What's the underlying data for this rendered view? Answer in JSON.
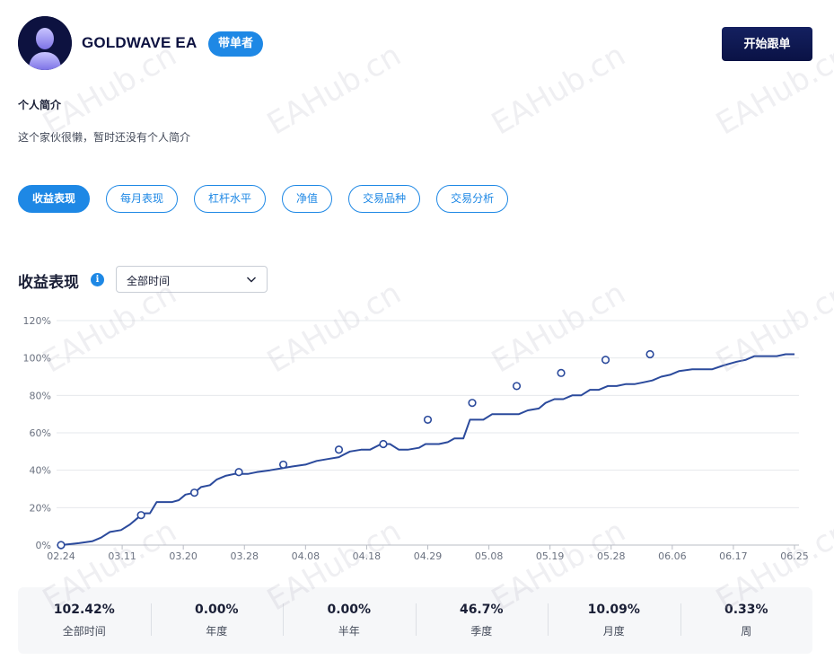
{
  "trader": {
    "name": "GOLDWAVE EA",
    "role_badge": "带单者",
    "follow_label": "开始跟单"
  },
  "bio": {
    "title": "个人简介",
    "text": "这个家伙很懒，暂时还没有个人简介"
  },
  "tabs": [
    {
      "label": "收益表现",
      "active": true
    },
    {
      "label": "每月表现",
      "active": false
    },
    {
      "label": "杠杆水平",
      "active": false
    },
    {
      "label": "净值",
      "active": false
    },
    {
      "label": "交易品种",
      "active": false
    },
    {
      "label": "交易分析",
      "active": false
    }
  ],
  "section": {
    "title": "收益表现",
    "info_icon_glyph": "i",
    "range_selected": "全部时间"
  },
  "chart_data": {
    "type": "line",
    "title": "",
    "xlabel": "",
    "ylabel": "",
    "ylim": [
      0,
      120
    ],
    "yticks": [
      "0%",
      "20%",
      "40%",
      "60%",
      "80%",
      "100%",
      "120%"
    ],
    "xticks": [
      "02.24",
      "03.11",
      "03.20",
      "03.28",
      "04.08",
      "04.18",
      "04.29",
      "05.08",
      "05.19",
      "05.28",
      "06.06",
      "06.17",
      "06.25"
    ],
    "grid": true,
    "legend": "none",
    "line_color": "#2b4a9c",
    "points": [
      [
        0,
        0
      ],
      [
        0.4,
        1
      ],
      [
        0.7,
        2
      ],
      [
        0.9,
        4
      ],
      [
        1.1,
        7
      ],
      [
        1.35,
        8
      ],
      [
        1.55,
        11
      ],
      [
        1.7,
        14
      ],
      [
        1.8,
        16
      ],
      [
        1.9,
        17
      ],
      [
        2.0,
        17
      ],
      [
        2.15,
        23
      ],
      [
        2.5,
        23
      ],
      [
        2.65,
        24
      ],
      [
        2.8,
        27
      ],
      [
        3.0,
        28
      ],
      [
        3.15,
        31
      ],
      [
        3.35,
        32
      ],
      [
        3.5,
        35
      ],
      [
        3.7,
        37
      ],
      [
        3.9,
        38
      ],
      [
        4.2,
        38
      ],
      [
        4.4,
        39
      ],
      [
        4.7,
        40
      ],
      [
        4.95,
        41
      ],
      [
        5.2,
        42
      ],
      [
        5.5,
        43
      ],
      [
        5.75,
        45
      ],
      [
        6.0,
        46
      ],
      [
        6.25,
        47
      ],
      [
        6.5,
        50
      ],
      [
        6.75,
        51
      ],
      [
        6.95,
        51
      ],
      [
        7.2,
        54
      ],
      [
        7.4,
        54
      ],
      [
        7.6,
        51
      ],
      [
        7.8,
        51
      ],
      [
        8.05,
        52
      ],
      [
        8.2,
        54
      ],
      [
        8.5,
        54
      ],
      [
        8.7,
        55
      ],
      [
        8.85,
        57
      ],
      [
        9.05,
        57
      ],
      [
        9.2,
        67
      ],
      [
        9.5,
        67
      ],
      [
        9.7,
        70
      ],
      [
        9.9,
        70
      ],
      [
        10.3,
        70
      ],
      [
        10.5,
        72
      ],
      [
        10.75,
        73
      ],
      [
        10.9,
        76
      ],
      [
        11.1,
        78
      ],
      [
        11.3,
        78
      ],
      [
        11.5,
        80
      ],
      [
        11.7,
        80
      ],
      [
        11.9,
        83
      ],
      [
        12.1,
        83
      ],
      [
        12.3,
        85
      ],
      [
        12.5,
        85
      ],
      [
        12.7,
        86
      ],
      [
        12.9,
        86
      ],
      [
        13.1,
        87
      ],
      [
        13.3,
        88
      ],
      [
        13.5,
        90
      ],
      [
        13.7,
        91
      ],
      [
        13.9,
        93
      ],
      [
        14.2,
        94
      ],
      [
        14.5,
        94
      ],
      [
        14.65,
        94
      ],
      [
        14.9,
        96
      ],
      [
        15.2,
        98
      ],
      [
        15.4,
        99
      ],
      [
        15.6,
        101
      ],
      [
        15.9,
        101
      ],
      [
        16.1,
        101
      ],
      [
        16.3,
        102
      ],
      [
        16.5,
        102
      ]
    ],
    "marker_points": [
      [
        0,
        0
      ],
      [
        1.8,
        16
      ],
      [
        3.0,
        28
      ],
      [
        4.0,
        39
      ],
      [
        5.0,
        43
      ],
      [
        6.25,
        51
      ],
      [
        7.25,
        54
      ],
      [
        8.25,
        67
      ],
      [
        9.25,
        76
      ],
      [
        10.25,
        85
      ],
      [
        11.25,
        92
      ],
      [
        12.25,
        99
      ],
      [
        13.25,
        102
      ]
    ]
  },
  "stats": [
    {
      "value": "102.42%",
      "label": "全部时间"
    },
    {
      "value": "0.00%",
      "label": "年度"
    },
    {
      "value": "0.00%",
      "label": "半年"
    },
    {
      "value": "46.7%",
      "label": "季度"
    },
    {
      "value": "10.09%",
      "label": "月度"
    },
    {
      "value": "0.33%",
      "label": "周"
    }
  ],
  "watermark": "EAHub.cn",
  "colors": {
    "accent": "#1e88e5",
    "follow_button": "#0d1240",
    "line": "#2b4a9c"
  }
}
